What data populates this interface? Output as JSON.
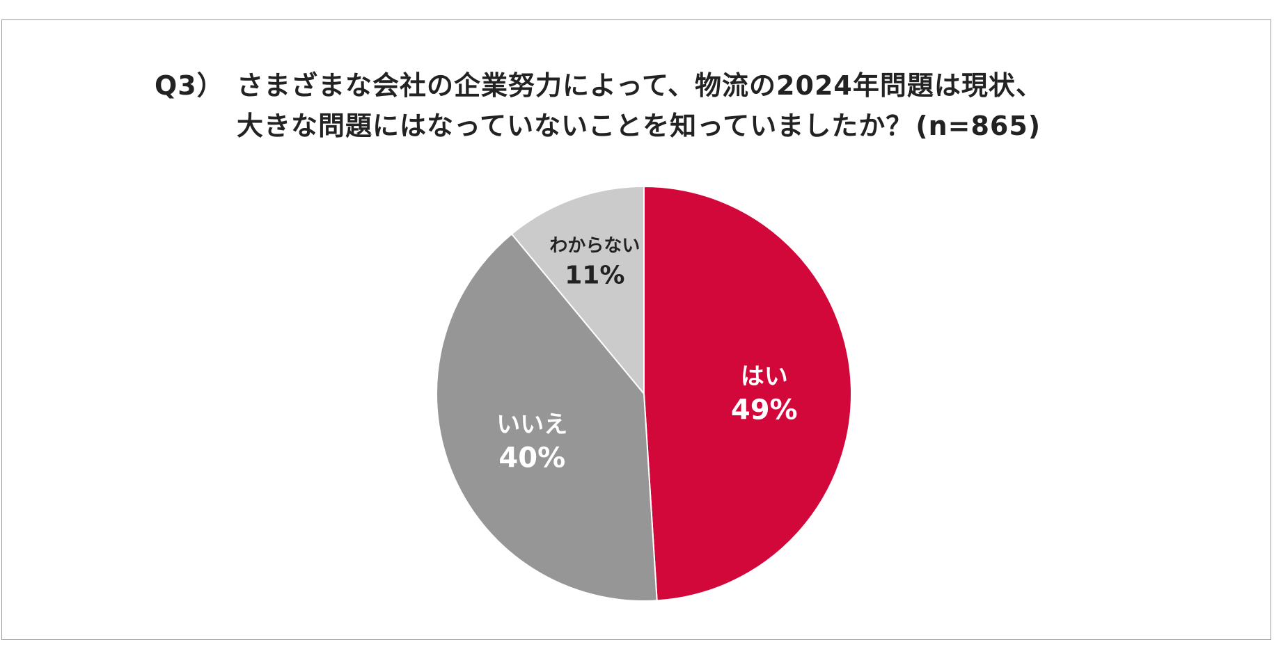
{
  "title": {
    "prefix": "Q3）",
    "line1": "さまざまな会社の企業努力によって、物流の2024年問題は現状、",
    "line2": "大きな問題にはなっていないことを知っていましたか？",
    "n_label": "(n=865)"
  },
  "colors": {
    "yes": "#d2073a",
    "no": "#969696",
    "unknown": "#cbcbcb",
    "frame": "#9a9a9a"
  },
  "chart_data": {
    "type": "pie",
    "title": "さまざまな会社の企業努力によって、物流の2024年問題は現状、大きな問題にはなっていないことを知っていましたか？",
    "n": 865,
    "start_angle": "12 o'clock, clockwise",
    "slices": [
      {
        "label": "はい",
        "value": 49,
        "value_label": "49%",
        "color": "#d2073a",
        "text_color": "#ffffff"
      },
      {
        "label": "いいえ",
        "value": 40,
        "value_label": "40%",
        "color": "#969696",
        "text_color": "#ffffff"
      },
      {
        "label": "わからない",
        "value": 11,
        "value_label": "11%",
        "color": "#cbcbcb",
        "text_color": "#222222"
      }
    ]
  }
}
